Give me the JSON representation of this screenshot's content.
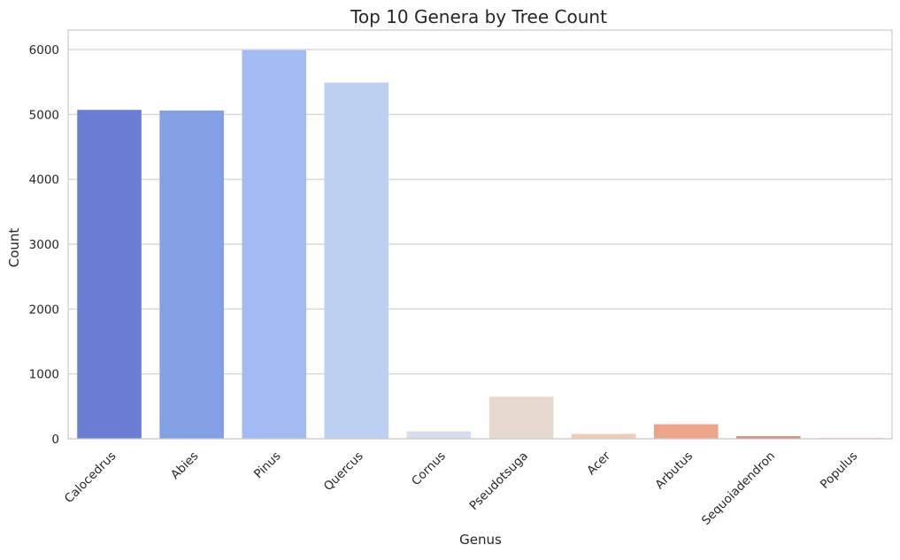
{
  "chart_data": {
    "type": "bar",
    "title": "Top 10 Genera by Tree Count",
    "xlabel": "Genus",
    "ylabel": "Count",
    "categories": [
      "Calocedrus",
      "Abies",
      "Pinus",
      "Quercus",
      "Cornus",
      "Pseudotsuga",
      "Acer",
      "Arbutus",
      "Sequoiadendron",
      "Populus"
    ],
    "values": [
      5070,
      5060,
      5990,
      5490,
      115,
      650,
      75,
      225,
      40,
      15
    ],
    "colors": [
      "#6a7ed4",
      "#83a0e5",
      "#a2bcf3",
      "#bdd0f2",
      "#d7ddea",
      "#e4d8cf",
      "#f0ccb6",
      "#eba68a",
      "#dc8f76",
      "#e5c8bd"
    ],
    "ylim": [
      0,
      6300
    ],
    "yticks": [
      0,
      1000,
      2000,
      3000,
      4000,
      5000,
      6000
    ],
    "grid": true,
    "grid_axis": "y",
    "legend": "none"
  }
}
